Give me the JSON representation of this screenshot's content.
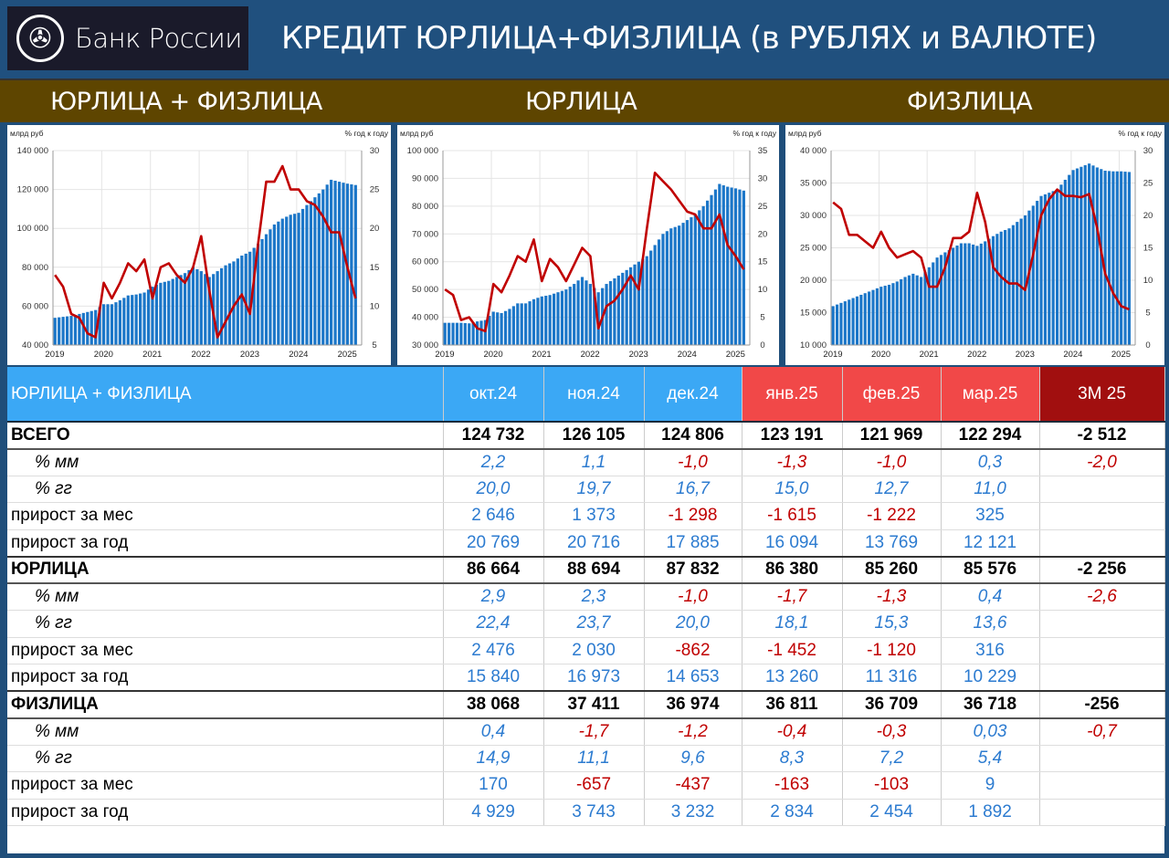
{
  "header": {
    "logo_text": "Банк России",
    "title": "КРЕДИТ ЮРЛИЦА+ФИЗЛИЦА (в РУБЛЯХ и ВАЛЮТЕ)"
  },
  "sections": [
    "ЮРЛИЦА + ФИЗЛИЦА",
    "ЮРЛИЦА",
    "ФИЗЛИЦА"
  ],
  "colors": {
    "bar": "#1b76c8",
    "line": "#c00000",
    "pos": "#2c7bd0",
    "neg": "#c00000"
  },
  "chart_data": [
    {
      "type": "bar+line",
      "title": "ЮРЛИЦА + ФИЗЛИЦА",
      "ylabel": "млрд руб",
      "y2label": "% год к году",
      "ylim": [
        40000,
        140000
      ],
      "yticks": [
        "40 000",
        "60 000",
        "80 000",
        "100 000",
        "120 000",
        "140 000"
      ],
      "y2lim": [
        5,
        30
      ],
      "y2ticks": [
        "5",
        "10",
        "15",
        "20",
        "25",
        "30"
      ],
      "xticks": [
        "2019",
        "2020",
        "2021",
        "2022",
        "2023",
        "2024",
        "2025"
      ],
      "x_step": "2 months from 2019-01 to 2025-03",
      "series": [
        {
          "name": "кредит, млрд руб",
          "type": "bar",
          "values": [
            54000,
            54500,
            55000,
            56000,
            57000,
            58000,
            61000,
            61000,
            63000,
            65500,
            66000,
            67000,
            70000,
            72000,
            73000,
            75000,
            77000,
            80000,
            78000,
            75000,
            78000,
            81000,
            83000,
            86000,
            88000,
            92000,
            97000,
            102000,
            105000,
            107000,
            108000,
            112000,
            116000,
            120000,
            125000,
            124000,
            123000,
            122300
          ]
        },
        {
          "name": "% год к году",
          "type": "line",
          "values": [
            14,
            12.5,
            9,
            8.5,
            6.5,
            6,
            13,
            11,
            13,
            15.5,
            14.5,
            16,
            11,
            15,
            15.5,
            14,
            13,
            15,
            19,
            12,
            6,
            8,
            10,
            11.5,
            9,
            18,
            26,
            26,
            28,
            25,
            25,
            23.5,
            23,
            21.5,
            19.5,
            19.5,
            15,
            11
          ]
        }
      ]
    },
    {
      "type": "bar+line",
      "title": "ЮРЛИЦА",
      "ylabel": "млрд руб",
      "y2label": "% год к году",
      "ylim": [
        30000,
        100000
      ],
      "yticks": [
        "30 000",
        "40 000",
        "50 000",
        "60 000",
        "70 000",
        "80 000",
        "90 000",
        "100 000"
      ],
      "y2lim": [
        0,
        35
      ],
      "y2ticks": [
        "0",
        "5",
        "10",
        "15",
        "20",
        "25",
        "30",
        "35"
      ],
      "xticks": [
        "2019",
        "2020",
        "2021",
        "2022",
        "2023",
        "2024",
        "2025"
      ],
      "x_step": "2 months from 2019-01 to 2025-03",
      "series": [
        {
          "name": "кредит, млрд руб",
          "type": "bar",
          "values": [
            38000,
            38000,
            38000,
            37800,
            38500,
            39000,
            42000,
            41500,
            43000,
            45000,
            45000,
            46500,
            47500,
            48000,
            49000,
            50000,
            52000,
            54500,
            52000,
            49000,
            52000,
            54000,
            56000,
            58000,
            60000,
            62000,
            66000,
            70000,
            72000,
            73000,
            75000,
            77000,
            80000,
            84000,
            88000,
            87000,
            86400,
            85600
          ]
        },
        {
          "name": "% год к году",
          "type": "line",
          "values": [
            10,
            9,
            4.5,
            5,
            3,
            2.5,
            11,
            9.5,
            12.5,
            16,
            15,
            19,
            11.5,
            15.5,
            14,
            11.5,
            14.5,
            17.5,
            16,
            3,
            7,
            8,
            10,
            12.5,
            10,
            21,
            31,
            29.5,
            28,
            26,
            24,
            23.5,
            21,
            21,
            23.5,
            18,
            16,
            13.6
          ]
        }
      ]
    },
    {
      "type": "bar+line",
      "title": "ФИЗЛИЦА",
      "ylabel": "млрд руб",
      "y2label": "% год к году",
      "ylim": [
        10000,
        40000
      ],
      "yticks": [
        "10 000",
        "15 000",
        "20 000",
        "25 000",
        "30 000",
        "35 000",
        "40 000"
      ],
      "y2lim": [
        0,
        30
      ],
      "y2ticks": [
        "0",
        "5",
        "10",
        "15",
        "20",
        "25",
        "30"
      ],
      "xticks": [
        "2019",
        "2020",
        "2021",
        "2022",
        "2023",
        "2024",
        "2025"
      ],
      "x_step": "2 months from 2019-01 to 2025-03",
      "series": [
        {
          "name": "кредит, млрд руб",
          "type": "bar",
          "values": [
            16000,
            16500,
            17000,
            17500,
            18000,
            18500,
            19000,
            19300,
            19800,
            20500,
            21000,
            20500,
            22000,
            23500,
            24300,
            25000,
            25700,
            25700,
            25300,
            26000,
            26800,
            27500,
            28000,
            29000,
            30000,
            31500,
            33000,
            33500,
            34000,
            35500,
            37000,
            37500,
            38000,
            37400,
            36900,
            36800,
            36800,
            36700
          ]
        },
        {
          "name": "% год к году",
          "type": "line",
          "values": [
            22,
            21,
            17,
            17,
            16,
            15,
            17.5,
            15,
            13.5,
            14,
            14.5,
            13.5,
            9,
            9,
            12,
            16.5,
            16.5,
            17.5,
            23.5,
            19,
            12,
            10.5,
            9.5,
            9.5,
            8.5,
            14,
            20,
            22.5,
            24,
            23,
            23,
            22.8,
            23.3,
            18,
            11,
            8,
            6,
            5.5
          ]
        }
      ]
    }
  ],
  "table": {
    "header": [
      "ЮРЛИЦА + ФИЗЛИЦА",
      "окт.24",
      "ноя.24",
      "дек.24",
      "янв.25",
      "фев.25",
      "мар.25",
      "3М 25"
    ],
    "rows": [
      {
        "kind": "total",
        "cells": [
          "ВСЕГО",
          "124 732",
          "126 105",
          "124 806",
          "123 191",
          "121 969",
          "122 294",
          "-2 512"
        ]
      },
      {
        "kind": "pct",
        "cells": [
          "% мм",
          "2,2",
          "1,1",
          "-1,0",
          "-1,3",
          "-1,0",
          "0,3",
          "-2,0"
        ]
      },
      {
        "kind": "pct",
        "cells": [
          "% гг",
          "20,0",
          "19,7",
          "16,7",
          "15,0",
          "12,7",
          "11,0",
          ""
        ]
      },
      {
        "kind": "abs",
        "cells": [
          "прирост за мес",
          "2 646",
          "1 373",
          "-1 298",
          "-1 615",
          "-1 222",
          "325",
          ""
        ]
      },
      {
        "kind": "abs",
        "cells": [
          "прирост за год",
          "20 769",
          "20 716",
          "17 885",
          "16 094",
          "13 769",
          "12 121",
          ""
        ]
      },
      {
        "kind": "total grp",
        "cells": [
          "ЮРЛИЦА",
          "86 664",
          "88 694",
          "87 832",
          "86 380",
          "85 260",
          "85 576",
          "-2 256"
        ]
      },
      {
        "kind": "pct",
        "cells": [
          "% мм",
          "2,9",
          "2,3",
          "-1,0",
          "-1,7",
          "-1,3",
          "0,4",
          "-2,6"
        ]
      },
      {
        "kind": "pct",
        "cells": [
          "% гг",
          "22,4",
          "23,7",
          "20,0",
          "18,1",
          "15,3",
          "13,6",
          ""
        ]
      },
      {
        "kind": "abs",
        "cells": [
          "прирост за мес",
          "2 476",
          "2 030",
          "-862",
          "-1 452",
          "-1 120",
          "316",
          ""
        ]
      },
      {
        "kind": "abs",
        "cells": [
          "прирост за год",
          "15 840",
          "16 973",
          "14 653",
          "13 260",
          "11 316",
          "10 229",
          ""
        ]
      },
      {
        "kind": "total grp",
        "cells": [
          "ФИЗЛИЦА",
          "38 068",
          "37 411",
          "36 974",
          "36 811",
          "36 709",
          "36 718",
          "-256"
        ]
      },
      {
        "kind": "pct",
        "cells": [
          "% мм",
          "0,4",
          "-1,7",
          "-1,2",
          "-0,4",
          "-0,3",
          "0,03",
          "-0,7"
        ]
      },
      {
        "kind": "pct",
        "cells": [
          "% гг",
          "14,9",
          "11,1",
          "9,6",
          "8,3",
          "7,2",
          "5,4",
          ""
        ]
      },
      {
        "kind": "abs",
        "cells": [
          "прирост за мес",
          "170",
          "-657",
          "-437",
          "-163",
          "-103",
          "9",
          ""
        ]
      },
      {
        "kind": "abs",
        "cells": [
          "прирост за год",
          "4 929",
          "3 743",
          "3 232",
          "2 834",
          "2 454",
          "1 892",
          ""
        ]
      }
    ]
  }
}
